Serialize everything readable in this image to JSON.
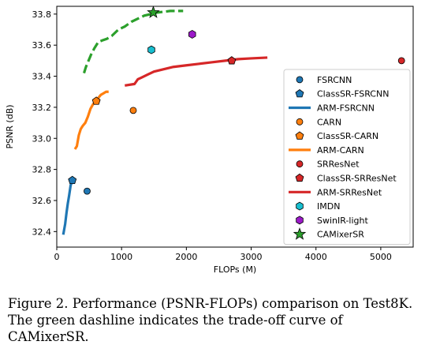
{
  "chart_data": {
    "type": "scatter",
    "xlabel": "FLOPs (M)",
    "ylabel": "PSNR (dB)",
    "xlim": [
      0,
      5500
    ],
    "ylim": [
      32.3,
      33.85
    ],
    "xticks": [
      0,
      1000,
      2000,
      3000,
      4000,
      5000
    ],
    "yticks": [
      32.4,
      32.6,
      32.8,
      33.0,
      33.2,
      33.4,
      33.6,
      33.8
    ],
    "xtick_labels": [
      "0",
      "1000",
      "2000",
      "3000",
      "4000",
      "5000"
    ],
    "ytick_labels": [
      "32.4",
      "32.6",
      "32.8",
      "33.0",
      "33.2",
      "33.4",
      "33.6",
      "33.8"
    ],
    "grid": false,
    "legend_position": "right",
    "series": [
      {
        "name": "FSRCNN",
        "kind": "point",
        "marker": "circle",
        "color": "#1f77b4",
        "x": [
          468
        ],
        "y": [
          32.66
        ]
      },
      {
        "name": "ClassSR-FSRCNN",
        "kind": "point",
        "marker": "pentagon",
        "color": "#1f77b4",
        "x": [
          240
        ],
        "y": [
          32.73
        ]
      },
      {
        "name": "ARM-FSRCNN",
        "kind": "line",
        "dash": "solid",
        "color": "#1f77b4",
        "x": [
          100,
          130,
          150,
          170,
          190,
          215,
          240,
          260,
          280
        ],
        "y": [
          32.38,
          32.45,
          32.52,
          32.58,
          32.63,
          32.7,
          32.72,
          32.73,
          32.74
        ]
      },
      {
        "name": "CARN",
        "kind": "point",
        "marker": "circle",
        "color": "#ff7f0e",
        "x": [
          1180
        ],
        "y": [
          33.18
        ]
      },
      {
        "name": "ClassSR-CARN",
        "kind": "point",
        "marker": "pentagon",
        "color": "#ff7f0e",
        "x": [
          610
        ],
        "y": [
          33.24
        ]
      },
      {
        "name": "ARM-CARN",
        "kind": "line",
        "dash": "solid",
        "color": "#ff7f0e",
        "x": [
          280,
          310,
          340,
          370,
          400,
          440,
          480,
          520,
          560,
          600,
          640,
          680,
          720,
          760,
          800
        ],
        "y": [
          32.93,
          32.95,
          33.02,
          33.06,
          33.08,
          33.1,
          33.14,
          33.19,
          33.22,
          33.24,
          33.26,
          33.28,
          33.29,
          33.3,
          33.3
        ]
      },
      {
        "name": "SRResNet",
        "kind": "point",
        "marker": "circle",
        "color": "#d62728",
        "x": [
          5320
        ],
        "y": [
          33.5
        ]
      },
      {
        "name": "ClassSR-SRResNet",
        "kind": "point",
        "marker": "pentagon",
        "color": "#d62728",
        "x": [
          2700
        ],
        "y": [
          33.5
        ]
      },
      {
        "name": "ARM-SRResNet",
        "kind": "line",
        "dash": "solid",
        "color": "#d62728",
        "x": [
          1050,
          1200,
          1250,
          1300,
          1400,
          1500,
          1600,
          1800,
          2000,
          2200,
          2400,
          2600,
          2800,
          3000,
          3250
        ],
        "y": [
          33.34,
          33.35,
          33.38,
          33.39,
          33.41,
          33.43,
          33.44,
          33.46,
          33.47,
          33.48,
          33.49,
          33.5,
          33.51,
          33.515,
          33.52
        ]
      },
      {
        "name": "IMDN",
        "kind": "point",
        "marker": "hexagon",
        "color": "#17becf",
        "x": [
          1460
        ],
        "y": [
          33.57
        ]
      },
      {
        "name": "SwinIR-light",
        "kind": "point",
        "marker": "hexagon",
        "color": "#9b19c8",
        "x": [
          2090
        ],
        "y": [
          33.67
        ]
      },
      {
        "name": "CAMixerSR",
        "kind": "point",
        "marker": "star",
        "color": "#2ca02c",
        "x": [
          1490
        ],
        "y": [
          33.81
        ]
      }
    ],
    "tradeoff_curve": {
      "kind": "line",
      "dash": "dashed",
      "color": "#2ca02c",
      "x": [
        420,
        450,
        490,
        530,
        580,
        640,
        700,
        770,
        850,
        950,
        1050,
        1150,
        1250,
        1350,
        1450,
        1550,
        1650,
        1750,
        1850,
        1950
      ],
      "y": [
        33.42,
        33.46,
        33.5,
        33.54,
        33.58,
        33.62,
        33.63,
        33.64,
        33.66,
        33.7,
        33.72,
        33.75,
        33.77,
        33.79,
        33.8,
        33.81,
        33.815,
        33.82,
        33.82,
        33.82
      ]
    }
  },
  "caption": {
    "line1": "Figure 2.  Performance (PSNR-FLOPs) comparison on Test8K.",
    "line2": "The green dashline indicates the trade-off curve of CAMixerSR."
  }
}
